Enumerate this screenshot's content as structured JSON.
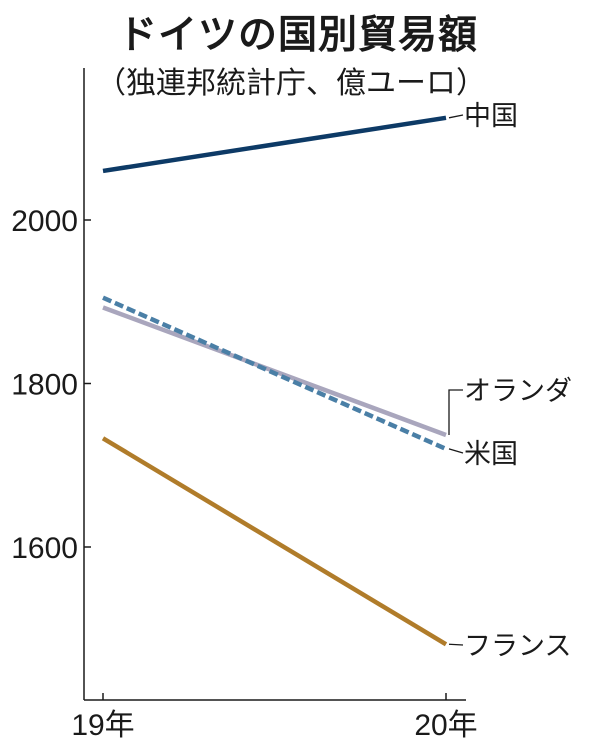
{
  "title": "ドイツの国別貿易額",
  "subtitle": "（独連邦統計庁、億ユーロ）",
  "chart_data": {
    "type": "line",
    "title": "ドイツの国別貿易額",
    "subtitle": "（独連邦統計庁、億ユーロ）",
    "categories": [
      "19年",
      "20年"
    ],
    "ylim": [
      1460,
      2200
    ],
    "yticks": [
      1600,
      1800,
      2000
    ],
    "grid": false,
    "series": [
      {
        "name": "中国",
        "values": [
          2060,
          2125
        ],
        "color": "#0d3a66",
        "dash": false
      },
      {
        "name": "オランダ",
        "values": [
          1893,
          1737
        ],
        "color": "#a9a6bd",
        "dash": false
      },
      {
        "name": "米国",
        "values": [
          1905,
          1720
        ],
        "color": "#4a7fa6",
        "dash": true
      },
      {
        "name": "フランス",
        "values": [
          1733,
          1481
        ],
        "color": "#b07c2a",
        "dash": false
      }
    ]
  }
}
